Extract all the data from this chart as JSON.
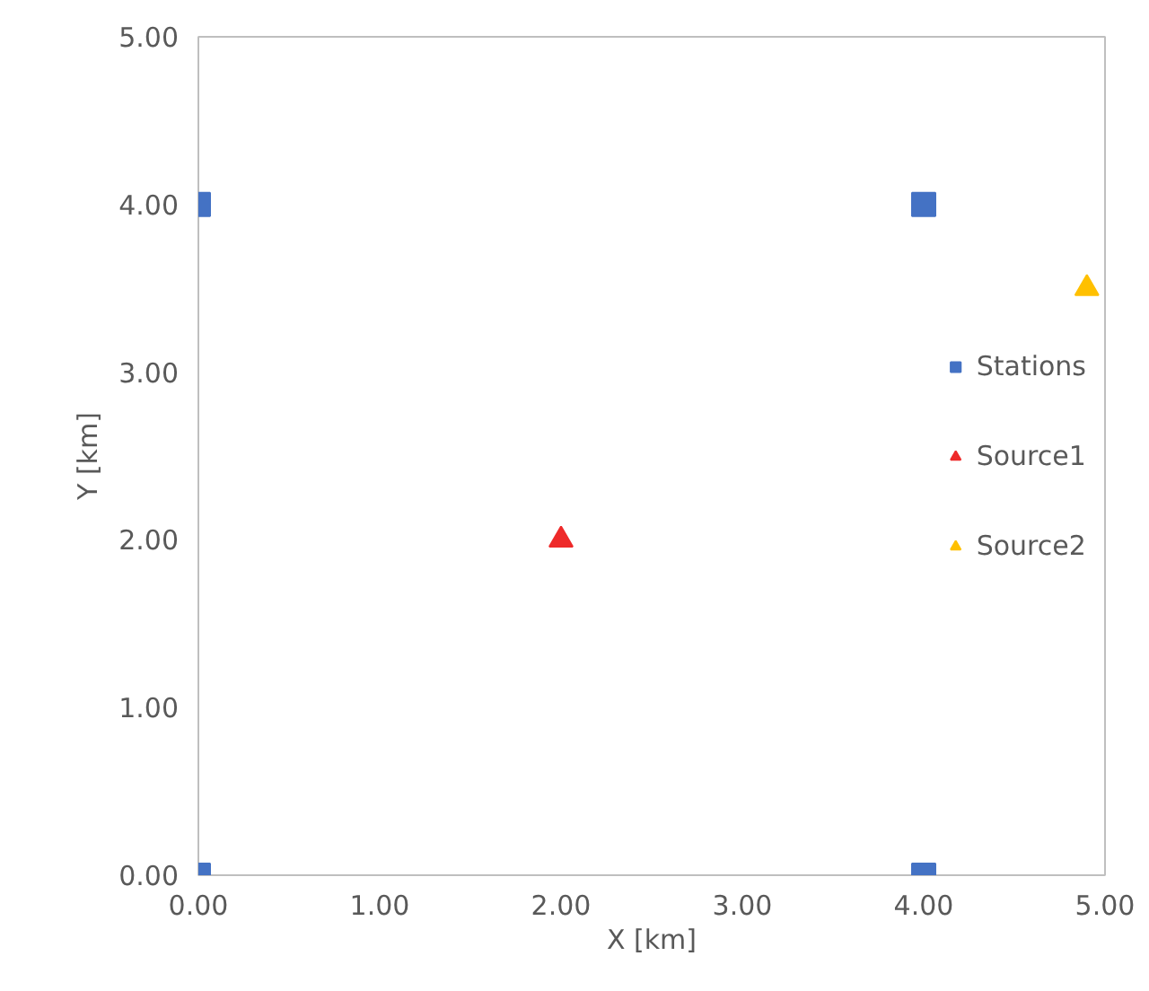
{
  "chart_data": {
    "type": "scatter",
    "xlabel": "X [km]",
    "ylabel": "Y [km]",
    "xlim": [
      0,
      5
    ],
    "ylim": [
      0,
      5
    ],
    "xticks": [
      {
        "value": 0,
        "label": "0.00"
      },
      {
        "value": 1,
        "label": "1.00"
      },
      {
        "value": 2,
        "label": "2.00"
      },
      {
        "value": 3,
        "label": "3.00"
      },
      {
        "value": 4,
        "label": "4.00"
      },
      {
        "value": 5,
        "label": "5.00"
      }
    ],
    "yticks": [
      {
        "value": 0,
        "label": "0.00"
      },
      {
        "value": 1,
        "label": "1.00"
      },
      {
        "value": 2,
        "label": "2.00"
      },
      {
        "value": 3,
        "label": "3.00"
      },
      {
        "value": 4,
        "label": "4.00"
      },
      {
        "value": 5,
        "label": "5.00"
      }
    ],
    "grid": false,
    "legend": "right",
    "series": [
      {
        "name": "Stations",
        "color": "#4472c4",
        "marker": "square",
        "x": [
          0,
          4,
          0,
          4
        ],
        "values": [
          4,
          4,
          0,
          0
        ]
      },
      {
        "name": "Source1",
        "color": "#ee2a2a",
        "marker": "triangle",
        "x": [
          2
        ],
        "values": [
          2
        ]
      },
      {
        "name": "Source2",
        "color": "#ffc000",
        "marker": "triangle",
        "x": [
          4.9
        ],
        "values": [
          3.5
        ]
      }
    ]
  }
}
